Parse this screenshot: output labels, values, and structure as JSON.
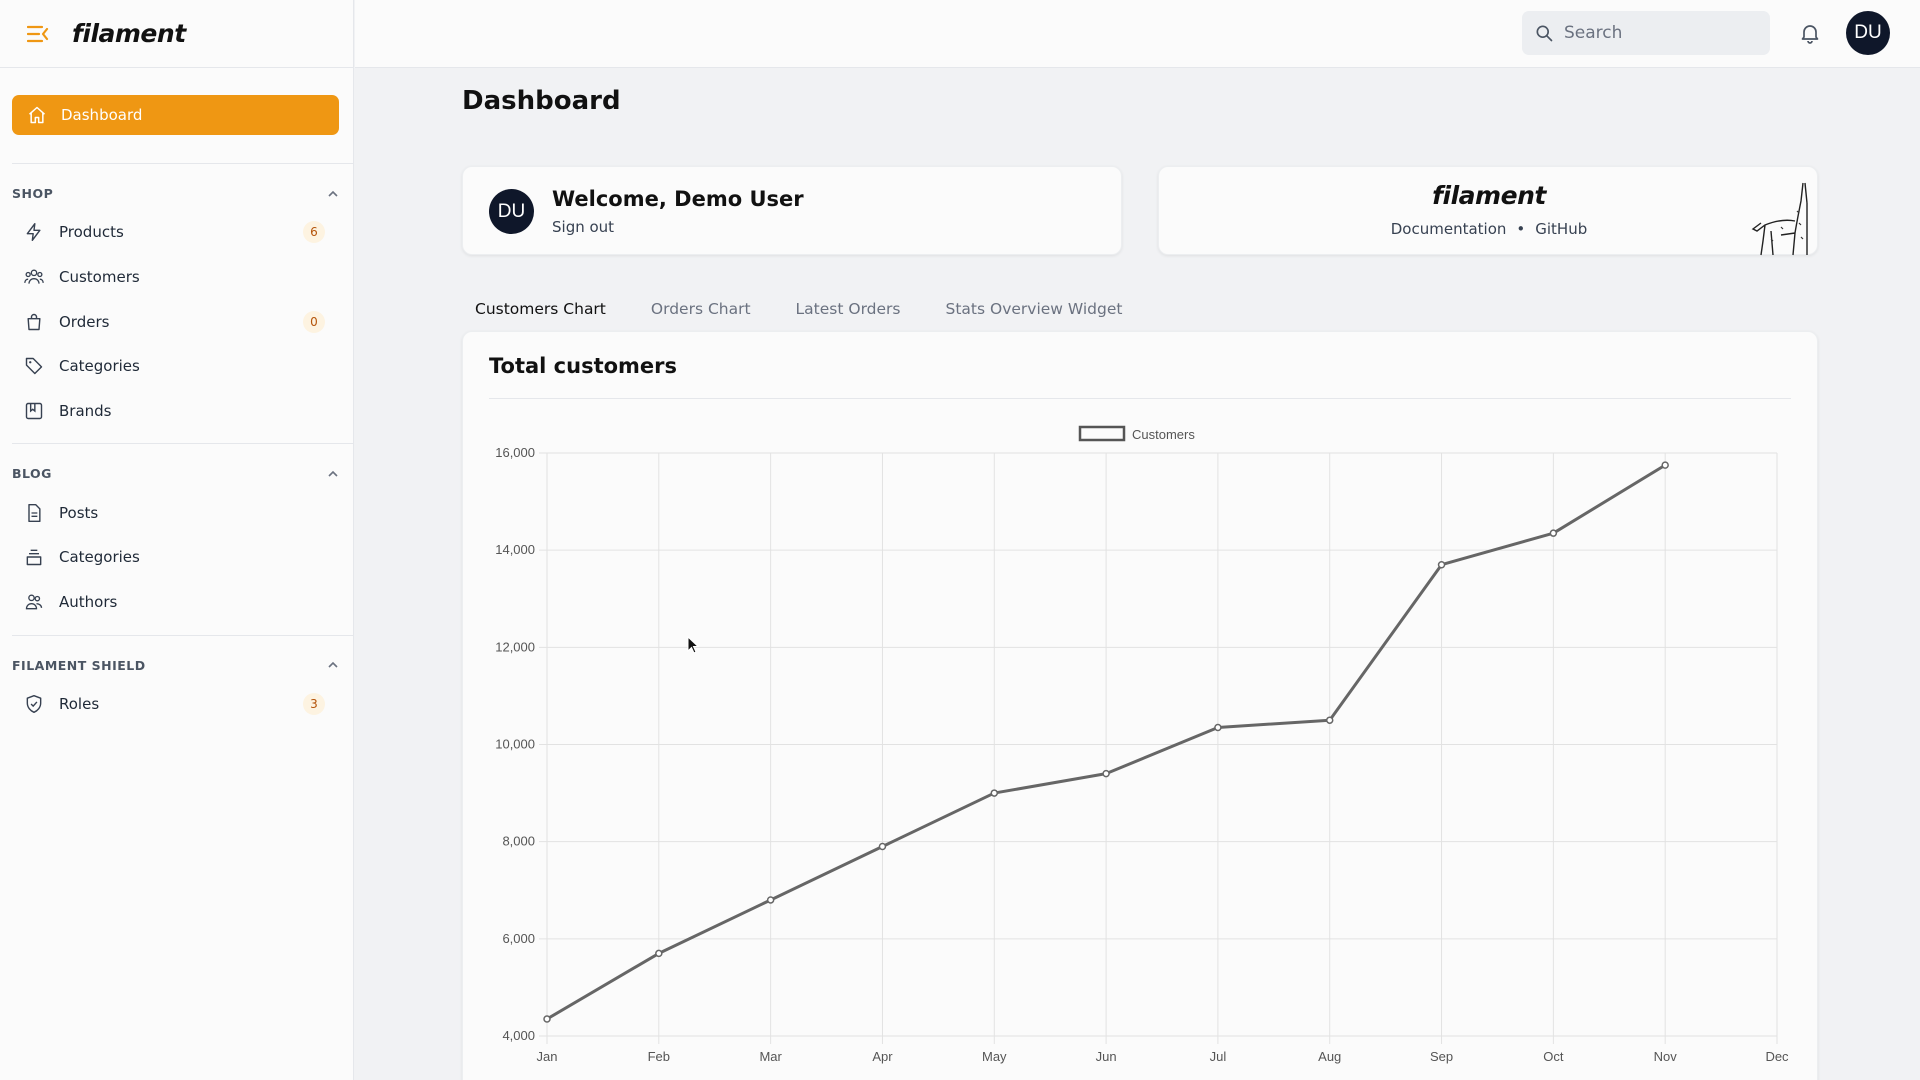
{
  "brand": {
    "name": "filament"
  },
  "sidebar": {
    "active": {
      "label": "Dashboard"
    },
    "groups": [
      {
        "label": "SHOP",
        "items": [
          {
            "label": "Products",
            "badge": "6",
            "icon": "bolt-icon"
          },
          {
            "label": "Customers",
            "icon": "users-icon"
          },
          {
            "label": "Orders",
            "badge": "0",
            "icon": "shopping-bag-icon"
          },
          {
            "label": "Categories",
            "icon": "tag-icon"
          },
          {
            "label": "Brands",
            "icon": "bookmark-square-icon"
          }
        ]
      },
      {
        "label": "BLOG",
        "items": [
          {
            "label": "Posts",
            "icon": "document-text-icon"
          },
          {
            "label": "Categories",
            "icon": "inbox-stack-icon"
          },
          {
            "label": "Authors",
            "icon": "user-group-icon"
          }
        ]
      },
      {
        "label": "FILAMENT SHIELD",
        "items": [
          {
            "label": "Roles",
            "badge": "3",
            "icon": "shield-check-icon"
          }
        ]
      }
    ]
  },
  "topbar": {
    "search_placeholder": "Search",
    "avatar_initials": "DU"
  },
  "page": {
    "title": "Dashboard"
  },
  "welcome": {
    "initials": "DU",
    "title": "Welcome, Demo User",
    "signout": "Sign out"
  },
  "filament_info": {
    "logo": "filament",
    "docs": "Documentation",
    "separator": "•",
    "github": "GitHub"
  },
  "tabs": [
    {
      "label": "Customers Chart",
      "active": true
    },
    {
      "label": "Orders Chart"
    },
    {
      "label": "Latest Orders"
    },
    {
      "label": "Stats Overview Widget"
    }
  ],
  "colors": {
    "accent": "#ef9713",
    "line": "#666666"
  },
  "chart_data": {
    "type": "line",
    "title": "Total customers",
    "categories": [
      "Jan",
      "Feb",
      "Mar",
      "Apr",
      "May",
      "Jun",
      "Jul",
      "Aug",
      "Sep",
      "Oct",
      "Nov",
      "Dec"
    ],
    "series": [
      {
        "name": "Customers",
        "values": [
          4350,
          5700,
          6800,
          7900,
          9000,
          9400,
          10350,
          10500,
          13700,
          14350,
          15750,
          null
        ]
      }
    ],
    "yticks": [
      "16,000",
      "14,000",
      "12,000",
      "10,000",
      "8,000",
      "6,000",
      "4,000"
    ],
    "ylim": [
      4000,
      16000
    ],
    "legend": "top-center",
    "grid": true
  }
}
